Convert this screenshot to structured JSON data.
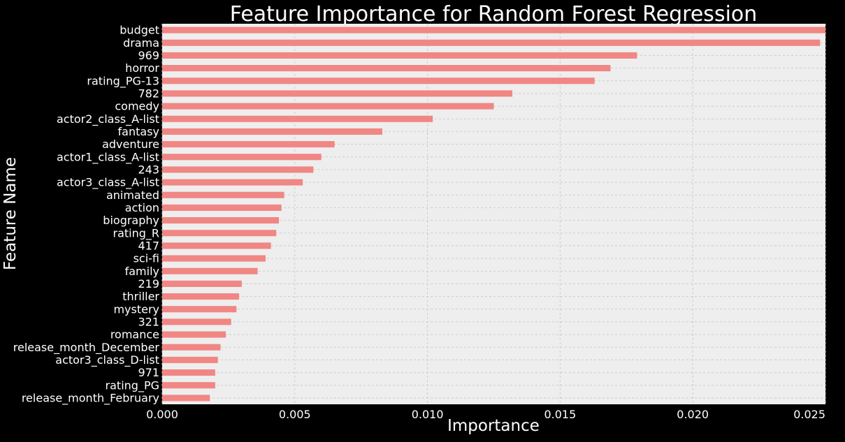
{
  "chart_data": {
    "type": "bar",
    "orientation": "horizontal",
    "title": "Feature Importance for Random Forest Regression",
    "xlabel": "Importance",
    "ylabel": "Feature Name",
    "xlim": [
      0,
      0.025
    ],
    "xticks": [
      0.0,
      0.005,
      0.01,
      0.015,
      0.02,
      0.025
    ],
    "xtick_labels": [
      "0.000",
      "0.005",
      "0.010",
      "0.015",
      "0.020",
      "0.025"
    ],
    "grid": true,
    "categories": [
      "budget",
      "drama",
      "969",
      "horror",
      "rating_PG-13",
      "782",
      "comedy",
      "actor2_class_A-list",
      "fantasy",
      "adventure",
      "actor1_class_A-list",
      "243",
      "actor3_class_A-list",
      "animated",
      "action",
      "biography",
      "rating_R",
      "417",
      "sci-fi",
      "family",
      "219",
      "thriller",
      "mystery",
      "321",
      "romance",
      "release_month_December",
      "actor3_class_D-list",
      "971",
      "rating_PG",
      "release_month_February"
    ],
    "values": [
      0.025,
      0.0248,
      0.0179,
      0.0169,
      0.0163,
      0.0132,
      0.0125,
      0.0102,
      0.0083,
      0.0065,
      0.006,
      0.0057,
      0.0053,
      0.0046,
      0.0045,
      0.0044,
      0.0043,
      0.0041,
      0.0039,
      0.0036,
      0.003,
      0.0029,
      0.0028,
      0.0026,
      0.0024,
      0.0022,
      0.0021,
      0.002,
      0.002,
      0.0018
    ],
    "colors": {
      "bar": "#f08784",
      "plot_background": "#eeeeee",
      "figure_background": "#000000",
      "grid": "#cbcbcb",
      "text": "#ffffff"
    }
  }
}
